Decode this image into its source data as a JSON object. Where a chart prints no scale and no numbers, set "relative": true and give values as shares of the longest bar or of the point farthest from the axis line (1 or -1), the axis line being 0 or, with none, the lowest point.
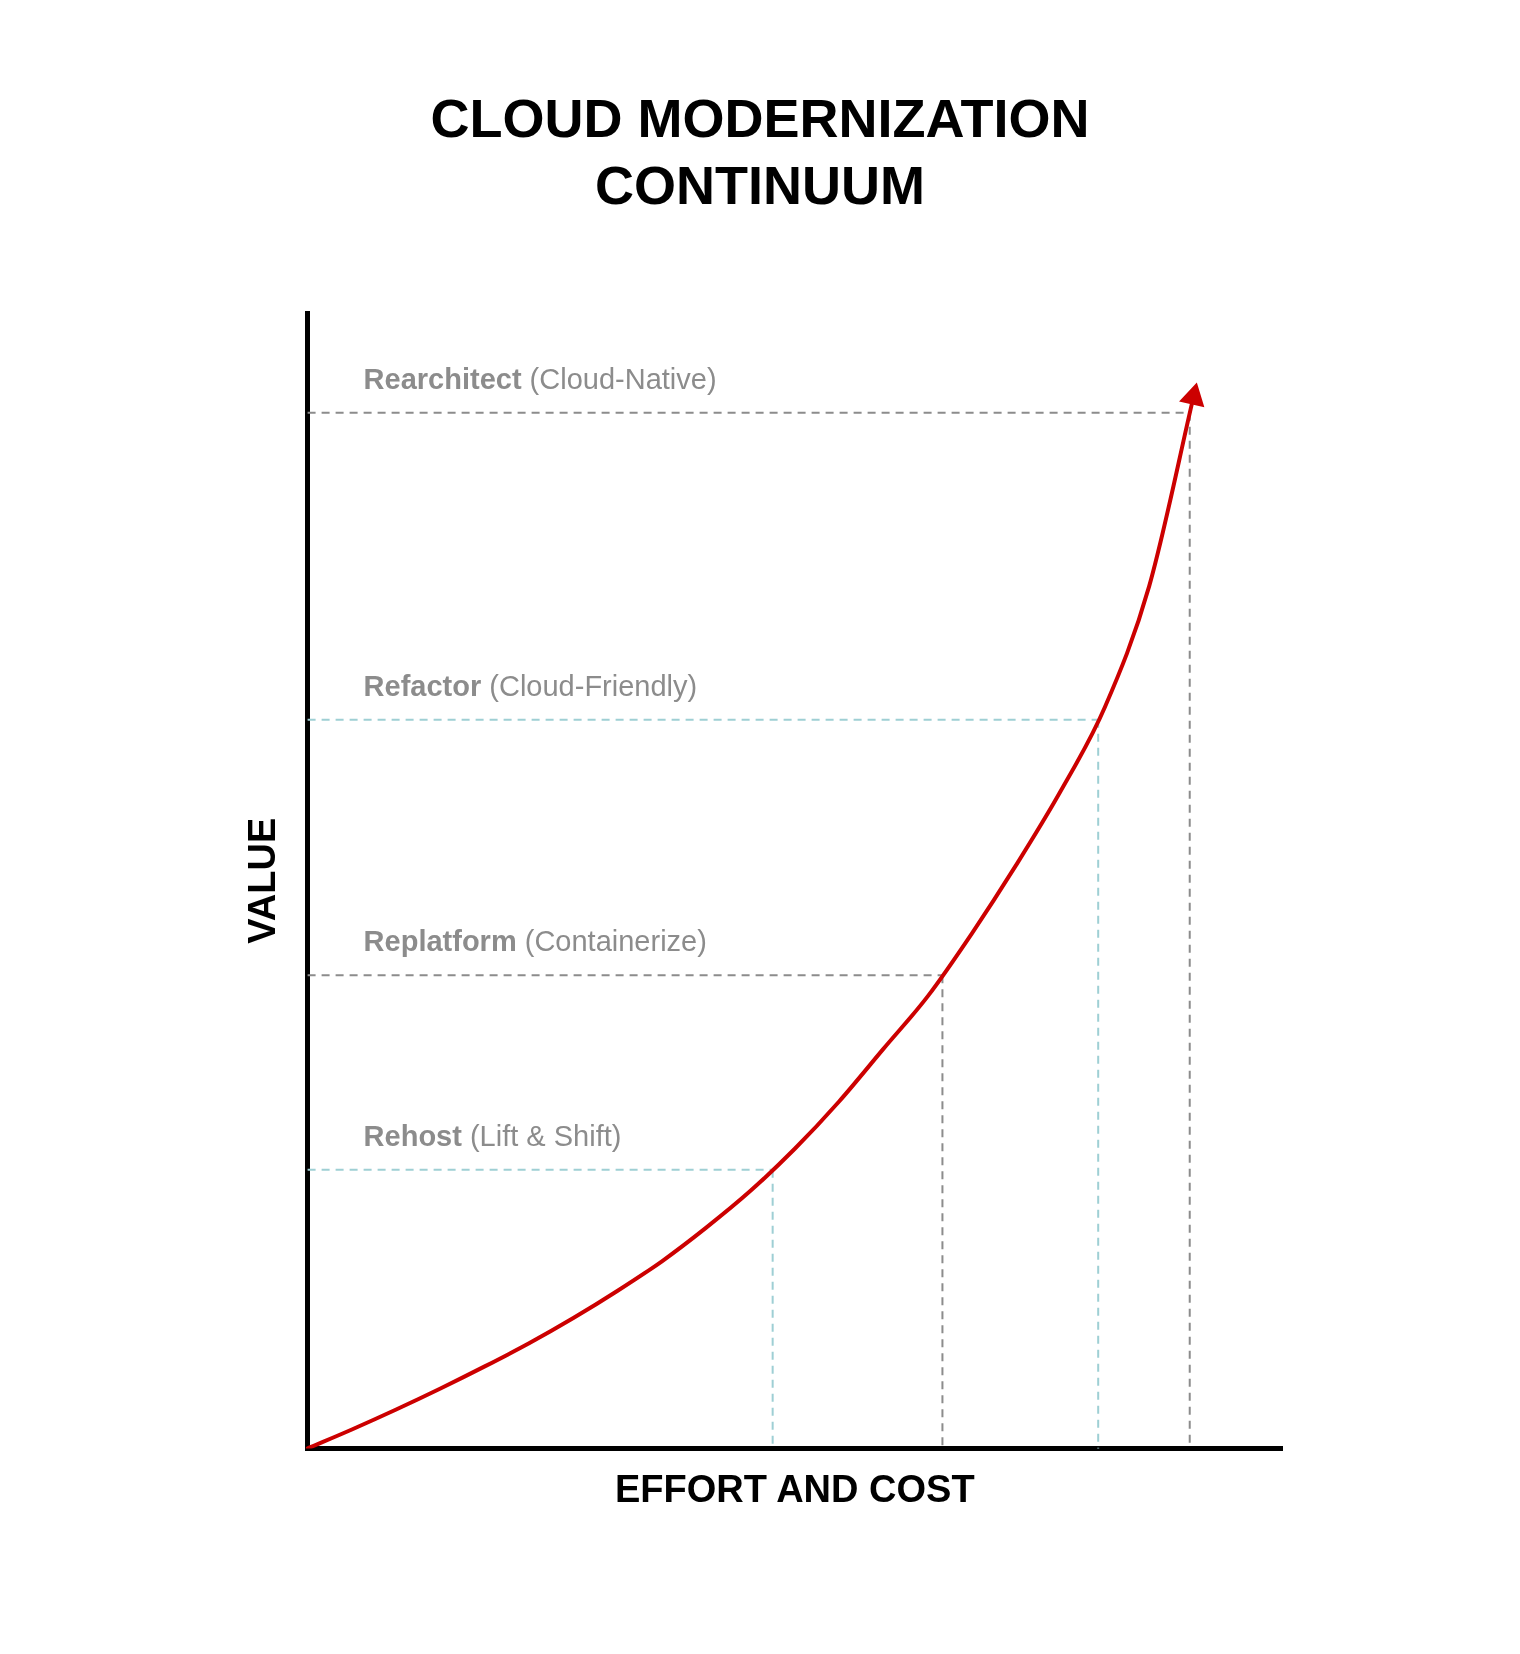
{
  "chart_data": {
    "type": "line",
    "title": "CLOUD MODERNIZATION CONTINUUM",
    "xlabel": "EFFORT AND COST",
    "ylabel": "VALUE",
    "relative": true,
    "grid": false,
    "legend": false,
    "marker": "none",
    "line_style": "solid",
    "categories": [
      null,
      null,
      null,
      null,
      null,
      null,
      null,
      null,
      null,
      null,
      null,
      null,
      null,
      null,
      null,
      null,
      null,
      null,
      null,
      null,
      null,
      null,
      null
    ],
    "series": [
      {
        "color": "#cc0000",
        "values": [
          0,
          0.018,
          0.037,
          0.057,
          0.078,
          0.1,
          0.124,
          0.15,
          0.178,
          0.21,
          0.245,
          0.285,
          0.33,
          0.38,
          0.43,
          0.49,
          0.555,
          0.625,
          0.705,
          0.82,
          1,
          null,
          null
        ]
      }
    ],
    "ref_lines": [
      {
        "axis": "y",
        "value": 0.985,
        "label": "Rearchitect (Cloud-Native)",
        "color": "#8c8c8c",
        "line_style": "dashed"
      },
      {
        "axis": "y",
        "value": 0.693,
        "label": "Refactor (Cloud-Friendly)",
        "color": "#9ecfd4",
        "line_style": "dashed"
      },
      {
        "axis": "y",
        "value": 0.45,
        "label": "Replatform (Containerize)",
        "color": "#8c8c8c",
        "line_style": "dashed"
      },
      {
        "axis": "y",
        "value": 0.265,
        "label": "Rehost (Lift & Shift)",
        "color": "#9ecfd4",
        "line_style": "dashed"
      }
    ]
  }
}
